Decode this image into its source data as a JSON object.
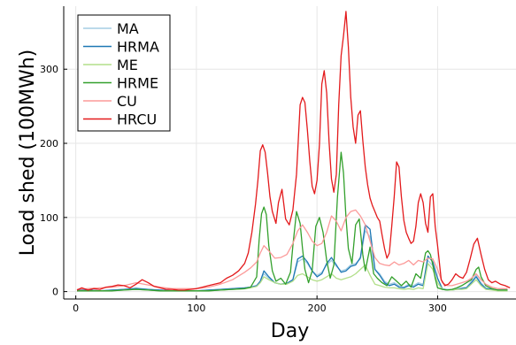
{
  "chart_data": {
    "type": "line",
    "title": "",
    "xlabel": "Day",
    "ylabel": "Load shed (100MWh)",
    "xlim": [
      -10,
      365
    ],
    "ylim": [
      -10,
      385
    ],
    "xticks": [
      0,
      100,
      200,
      300
    ],
    "yticks": [
      0,
      100,
      200,
      300
    ],
    "grid": true,
    "legend_position": "top-left",
    "series": [
      {
        "name": "MA",
        "color": "#a6cee3",
        "x": [
          1,
          10,
          20,
          30,
          40,
          50,
          60,
          70,
          80,
          90,
          100,
          110,
          120,
          130,
          140,
          145,
          150,
          153,
          156,
          160,
          165,
          170,
          175,
          180,
          184,
          188,
          192,
          196,
          200,
          204,
          208,
          212,
          216,
          220,
          224,
          228,
          232,
          236,
          240,
          244,
          248,
          252,
          256,
          260,
          264,
          268,
          272,
          276,
          280,
          284,
          288,
          292,
          296,
          300,
          304,
          308,
          312,
          316,
          320,
          324,
          328,
          332,
          336,
          340,
          345,
          350,
          358
        ],
        "y": [
          2,
          2,
          1,
          2,
          3,
          5,
          3,
          2,
          1,
          1,
          1,
          2,
          3,
          4,
          5,
          6,
          8,
          14,
          24,
          18,
          12,
          10,
          11,
          16,
          40,
          44,
          38,
          28,
          22,
          26,
          36,
          42,
          34,
          28,
          30,
          36,
          38,
          44,
          82,
          74,
          30,
          24,
          14,
          10,
          12,
          8,
          6,
          10,
          8,
          12,
          10,
          42,
          35,
          18,
          4,
          3,
          3,
          4,
          5,
          6,
          14,
          22,
          12,
          5,
          3,
          2,
          2
        ]
      },
      {
        "name": "HRMA",
        "color": "#1f78b4",
        "x": [
          1,
          10,
          20,
          30,
          40,
          50,
          60,
          70,
          80,
          90,
          100,
          110,
          120,
          130,
          140,
          145,
          150,
          153,
          156,
          160,
          165,
          170,
          175,
          180,
          184,
          188,
          192,
          196,
          200,
          204,
          208,
          212,
          216,
          220,
          224,
          228,
          232,
          236,
          240,
          244,
          248,
          252,
          256,
          260,
          264,
          268,
          272,
          276,
          280,
          284,
          288,
          292,
          296,
          300,
          304,
          308,
          312,
          316,
          320,
          324,
          328,
          332,
          336,
          340,
          345,
          350,
          358
        ],
        "y": [
          2,
          2,
          1,
          2,
          3,
          4,
          3,
          2,
          1,
          1,
          1,
          2,
          3,
          4,
          5,
          6,
          8,
          14,
          28,
          20,
          12,
          10,
          11,
          16,
          44,
          48,
          40,
          28,
          20,
          24,
          38,
          46,
          36,
          26,
          28,
          34,
          36,
          46,
          90,
          84,
          30,
          22,
          12,
          8,
          10,
          6,
          5,
          8,
          6,
          10,
          8,
          48,
          40,
          18,
          3,
          2,
          2,
          3,
          4,
          5,
          12,
          20,
          10,
          4,
          3,
          2,
          2
        ]
      },
      {
        "name": "ME",
        "color": "#b2df8a",
        "x": [
          1,
          10,
          20,
          30,
          40,
          50,
          60,
          70,
          80,
          90,
          100,
          110,
          120,
          130,
          140,
          145,
          150,
          153,
          156,
          160,
          165,
          170,
          175,
          180,
          184,
          188,
          192,
          196,
          200,
          204,
          208,
          212,
          216,
          220,
          224,
          228,
          232,
          236,
          240,
          244,
          248,
          252,
          256,
          260,
          264,
          268,
          272,
          276,
          280,
          284,
          288,
          292,
          296,
          300,
          304,
          308,
          312,
          316,
          320,
          324,
          328,
          332,
          336,
          340,
          345,
          350,
          358
        ],
        "y": [
          1,
          1,
          1,
          1,
          2,
          3,
          2,
          1,
          1,
          1,
          1,
          1,
          2,
          3,
          4,
          5,
          7,
          12,
          20,
          16,
          12,
          10,
          10,
          14,
          22,
          24,
          20,
          16,
          14,
          16,
          20,
          24,
          18,
          16,
          18,
          20,
          24,
          30,
          36,
          22,
          10,
          8,
          6,
          5,
          5,
          4,
          3,
          4,
          3,
          5,
          4,
          38,
          30,
          12,
          3,
          2,
          2,
          3,
          3,
          4,
          10,
          16,
          8,
          3,
          2,
          1,
          1
        ]
      },
      {
        "name": "HRME",
        "color": "#33a02c",
        "x": [
          1,
          10,
          20,
          30,
          40,
          50,
          60,
          70,
          80,
          90,
          100,
          110,
          120,
          130,
          140,
          145,
          150,
          152,
          154,
          156,
          158,
          160,
          163,
          166,
          170,
          174,
          178,
          180,
          183,
          186,
          188,
          190,
          193,
          196,
          199,
          202,
          205,
          208,
          211,
          214,
          217,
          220,
          222,
          224,
          226,
          229,
          232,
          235,
          238,
          240,
          242,
          244,
          247,
          250,
          254,
          258,
          262,
          266,
          270,
          274,
          278,
          282,
          286,
          290,
          292,
          294,
          296,
          298,
          300,
          304,
          308,
          312,
          316,
          320,
          324,
          328,
          332,
          334,
          336,
          340,
          345,
          350,
          358
        ],
        "y": [
          1,
          1,
          1,
          1,
          2,
          3,
          2,
          1,
          1,
          1,
          1,
          1,
          2,
          3,
          4,
          6,
          20,
          70,
          105,
          114,
          104,
          62,
          28,
          14,
          18,
          10,
          26,
          62,
          108,
          92,
          58,
          30,
          12,
          28,
          88,
          100,
          80,
          42,
          18,
          36,
          128,
          188,
          160,
          100,
          58,
          38,
          90,
          98,
          50,
          28,
          44,
          60,
          24,
          18,
          12,
          8,
          20,
          14,
          8,
          14,
          6,
          24,
          18,
          52,
          55,
          50,
          36,
          18,
          5,
          3,
          2,
          3,
          5,
          8,
          12,
          16,
          30,
          33,
          20,
          8,
          4,
          2,
          2
        ]
      },
      {
        "name": "CU",
        "color": "#fb9a99",
        "x": [
          1,
          10,
          20,
          30,
          40,
          50,
          60,
          70,
          80,
          90,
          100,
          110,
          120,
          130,
          140,
          145,
          150,
          153,
          156,
          160,
          165,
          170,
          175,
          180,
          184,
          188,
          192,
          196,
          200,
          204,
          208,
          212,
          216,
          220,
          224,
          228,
          232,
          236,
          240,
          244,
          248,
          252,
          256,
          260,
          264,
          268,
          272,
          276,
          280,
          284,
          288,
          292,
          296,
          300,
          304,
          308,
          312,
          316,
          320,
          324,
          328,
          332,
          336,
          340,
          345,
          350,
          358
        ],
        "y": [
          3,
          4,
          5,
          6,
          8,
          12,
          9,
          6,
          4,
          4,
          4,
          6,
          10,
          16,
          26,
          32,
          40,
          52,
          62,
          55,
          45,
          46,
          50,
          65,
          82,
          90,
          80,
          68,
          62,
          65,
          80,
          102,
          95,
          82,
          100,
          108,
          110,
          102,
          90,
          68,
          46,
          38,
          36,
          35,
          40,
          36,
          38,
          42,
          36,
          42,
          40,
          45,
          44,
          30,
          12,
          8,
          8,
          10,
          12,
          14,
          18,
          24,
          16,
          10,
          6,
          4,
          4
        ]
      },
      {
        "name": "HRCU",
        "color": "#e31a1c",
        "x": [
          1,
          5,
          10,
          15,
          20,
          25,
          30,
          35,
          40,
          45,
          50,
          55,
          60,
          65,
          70,
          75,
          80,
          85,
          90,
          95,
          100,
          105,
          110,
          115,
          120,
          125,
          130,
          135,
          140,
          143,
          146,
          149,
          151,
          153,
          155,
          157,
          159,
          161,
          163,
          166,
          168,
          171,
          174,
          177,
          180,
          183,
          186,
          188,
          190,
          192,
          194,
          196,
          198,
          200,
          202,
          204,
          206,
          208,
          210,
          212,
          214,
          216,
          218,
          220,
          222,
          224,
          226,
          228,
          230,
          232,
          234,
          236,
          238,
          240,
          242,
          244,
          246,
          248,
          250,
          252,
          254,
          256,
          258,
          260,
          262,
          264,
          266,
          268,
          270,
          272,
          274,
          276,
          278,
          280,
          282,
          284,
          286,
          288,
          290,
          292,
          294,
          296,
          298,
          300,
          303,
          306,
          309,
          312,
          315,
          318,
          321,
          324,
          327,
          330,
          333,
          336,
          339,
          342,
          345,
          348,
          352,
          356,
          360
        ],
        "y": [
          2,
          5,
          2,
          4,
          3,
          6,
          7,
          9,
          8,
          5,
          10,
          16,
          12,
          7,
          5,
          3,
          3,
          2,
          2,
          3,
          4,
          6,
          8,
          10,
          12,
          18,
          22,
          28,
          38,
          52,
          80,
          118,
          150,
          190,
          198,
          188,
          160,
          128,
          108,
          92,
          120,
          138,
          98,
          90,
          110,
          158,
          252,
          262,
          255,
          218,
          176,
          142,
          132,
          150,
          198,
          280,
          298,
          268,
          202,
          152,
          134,
          158,
          252,
          318,
          345,
          378,
          330,
          262,
          222,
          200,
          238,
          244,
          204,
          168,
          144,
          126,
          116,
          108,
          100,
          95,
          76,
          58,
          45,
          52,
          88,
          128,
          175,
          168,
          128,
          96,
          80,
          72,
          65,
          68,
          88,
          120,
          132,
          120,
          92,
          80,
          128,
          132,
          88,
          62,
          16,
          8,
          10,
          16,
          24,
          20,
          18,
          26,
          44,
          64,
          72,
          50,
          30,
          16,
          12,
          14,
          10,
          8,
          5
        ]
      }
    ]
  }
}
